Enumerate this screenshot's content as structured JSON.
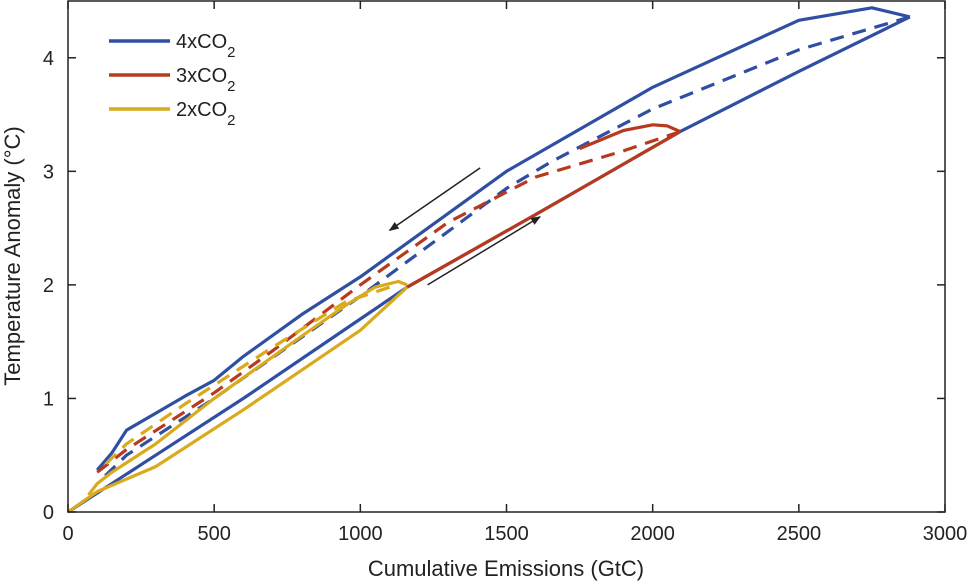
{
  "chart_data": {
    "type": "line",
    "title": "",
    "xlabel": "Cumulative Emissions (GtC)",
    "ylabel": "Temperature Anomaly (°C)",
    "xlim": [
      0,
      3000
    ],
    "ylim": [
      0,
      4.5
    ],
    "xticks": [
      0,
      500,
      1000,
      1500,
      2000,
      2500,
      3000
    ],
    "yticks": [
      0,
      1,
      2,
      3,
      4
    ],
    "grid": false,
    "legend_position": "top-left",
    "colors": {
      "4x": "#2f4fa3",
      "3x": "#b83a1e",
      "2x": "#d9aa1c",
      "arrow": "#222222"
    },
    "legend": [
      {
        "label": "4xCO",
        "sub": "2",
        "series": "4x"
      },
      {
        "label": "3xCO",
        "sub": "2",
        "series": "3x"
      },
      {
        "label": "2xCO",
        "sub": "2",
        "series": "2x"
      }
    ],
    "series": [
      {
        "name": "4xCO2 ramp-up",
        "group": "4x",
        "dashed": false,
        "x": [
          0,
          300,
          600,
          1000,
          1160,
          1600,
          2094,
          2500,
          2880
        ],
        "y": [
          0,
          0.5,
          1.0,
          1.7,
          1.98,
          2.62,
          3.35,
          3.88,
          4.36
        ]
      },
      {
        "name": "4xCO2 ramp-down",
        "group": "4x",
        "dashed": false,
        "x": [
          2880,
          2750,
          2500,
          2000,
          1500,
          1000,
          800,
          600,
          500,
          400,
          300,
          200,
          150,
          100
        ],
        "y": [
          4.36,
          4.44,
          4.33,
          3.74,
          3.0,
          2.07,
          1.74,
          1.37,
          1.16,
          1.02,
          0.87,
          0.72,
          0.52,
          0.37
        ]
      },
      {
        "name": "4xCO2 dashed",
        "group": "4x",
        "dashed": true,
        "x": [
          2880,
          2500,
          2000,
          1650,
          1500,
          1000,
          500,
          200,
          120
        ],
        "y": [
          4.36,
          4.07,
          3.55,
          3.08,
          2.85,
          1.9,
          1.0,
          0.5,
          0.3
        ]
      },
      {
        "name": "3xCO2 ramp-down",
        "group": "3x",
        "dashed": false,
        "x": [
          2094,
          2050,
          2000,
          1900,
          1750
        ],
        "y": [
          3.35,
          3.4,
          3.41,
          3.36,
          3.2
        ]
      },
      {
        "name": "3xCO2 dashed",
        "group": "3x",
        "dashed": true,
        "x": [
          2094,
          1900,
          1600,
          1300,
          1000,
          700,
          500,
          200,
          100
        ],
        "y": [
          3.35,
          3.18,
          2.95,
          2.55,
          2.0,
          1.42,
          1.05,
          0.55,
          0.35
        ]
      },
      {
        "name": "3xCO2 ramp-up",
        "group": "3x",
        "dashed": false,
        "x": [
          1160,
          1600,
          2094
        ],
        "y": [
          1.98,
          2.62,
          3.35
        ]
      },
      {
        "name": "2xCO2 ramp-up",
        "group": "2x",
        "dashed": false,
        "x": [
          0,
          100,
          300,
          600,
          1000,
          1160
        ],
        "y": [
          0,
          0.18,
          0.4,
          0.9,
          1.6,
          1.98
        ]
      },
      {
        "name": "2xCO2 ramp-down",
        "group": "2x",
        "dashed": false,
        "x": [
          1160,
          1130,
          1050,
          950,
          800,
          500,
          300,
          150,
          100,
          70
        ],
        "y": [
          2.0,
          2.03,
          1.98,
          1.82,
          1.55,
          1.0,
          0.6,
          0.35,
          0.25,
          0.15
        ]
      },
      {
        "name": "2xCO2 dashed",
        "group": "2x",
        "dashed": true,
        "x": [
          1100,
          950,
          700,
          400,
          200,
          120
        ],
        "y": [
          1.98,
          1.85,
          1.45,
          0.95,
          0.6,
          0.4
        ]
      }
    ],
    "annotations": [
      {
        "type": "arrow",
        "from": [
          1410,
          3.03
        ],
        "to": [
          1100,
          2.48
        ]
      },
      {
        "type": "arrow",
        "from": [
          1230,
          2.0
        ],
        "to": [
          1615,
          2.6
        ]
      }
    ]
  }
}
